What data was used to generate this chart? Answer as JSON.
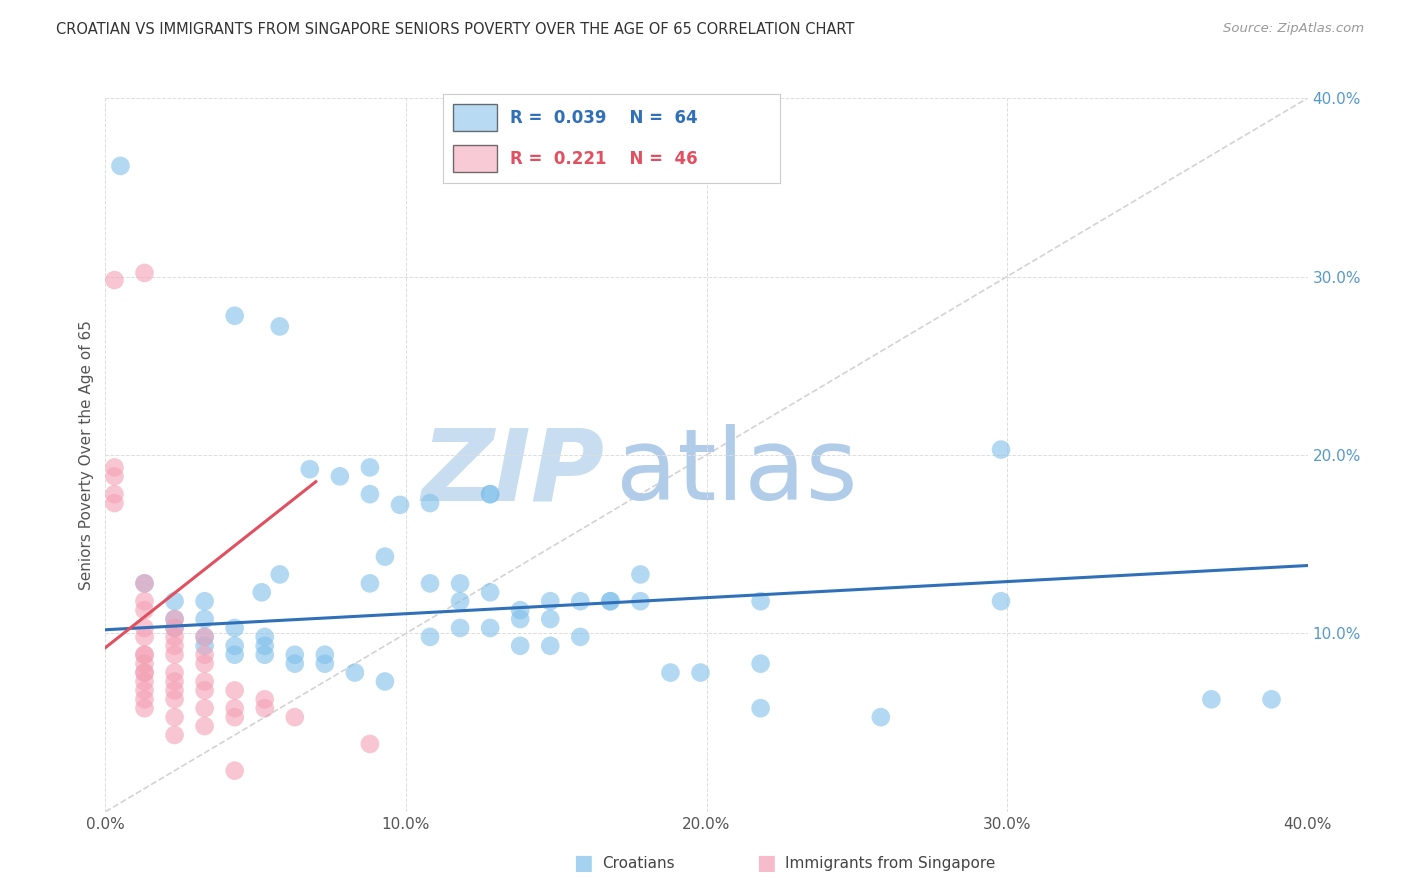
{
  "title": "CROATIAN VS IMMIGRANTS FROM SINGAPORE SENIORS POVERTY OVER THE AGE OF 65 CORRELATION CHART",
  "source": "Source: ZipAtlas.com",
  "ylabel": "Seniors Poverty Over the Age of 65",
  "R1": "0.039",
  "N1": "64",
  "R2": "0.221",
  "N2": "46",
  "blue_color": "#7fbfea",
  "pink_color": "#f4a0b5",
  "blue_line_color": "#3070b8",
  "pink_line_color": "#e05060",
  "diag_line_color": "#c8c8c8",
  "watermark_zip_color": "#c8ddf0",
  "watermark_atlas_color": "#b0cce8",
  "background": "#ffffff",
  "grid_color": "#dddddd",
  "title_color": "#333333",
  "right_tick_color": "#5599cc",
  "xlim": [
    0.0,
    0.4
  ],
  "ylim": [
    0.0,
    0.4
  ],
  "blue_trend_x": [
    0.0,
    0.4
  ],
  "blue_trend_y": [
    0.102,
    0.138
  ],
  "pink_trend_x": [
    0.0,
    0.07
  ],
  "pink_trend_y": [
    0.092,
    0.185
  ],
  "scatter_blue": [
    [
      0.005,
      0.362
    ],
    [
      0.043,
      0.278
    ],
    [
      0.058,
      0.272
    ],
    [
      0.058,
      0.133
    ],
    [
      0.093,
      0.143
    ],
    [
      0.052,
      0.123
    ],
    [
      0.068,
      0.192
    ],
    [
      0.078,
      0.188
    ],
    [
      0.088,
      0.193
    ],
    [
      0.088,
      0.178
    ],
    [
      0.088,
      0.128
    ],
    [
      0.098,
      0.172
    ],
    [
      0.108,
      0.173
    ],
    [
      0.108,
      0.128
    ],
    [
      0.108,
      0.098
    ],
    [
      0.118,
      0.128
    ],
    [
      0.118,
      0.118
    ],
    [
      0.118,
      0.103
    ],
    [
      0.128,
      0.178
    ],
    [
      0.128,
      0.178
    ],
    [
      0.128,
      0.123
    ],
    [
      0.128,
      0.103
    ],
    [
      0.138,
      0.113
    ],
    [
      0.138,
      0.108
    ],
    [
      0.138,
      0.093
    ],
    [
      0.148,
      0.118
    ],
    [
      0.148,
      0.108
    ],
    [
      0.148,
      0.093
    ],
    [
      0.158,
      0.118
    ],
    [
      0.158,
      0.098
    ],
    [
      0.013,
      0.128
    ],
    [
      0.023,
      0.118
    ],
    [
      0.023,
      0.108
    ],
    [
      0.023,
      0.103
    ],
    [
      0.033,
      0.118
    ],
    [
      0.033,
      0.108
    ],
    [
      0.033,
      0.098
    ],
    [
      0.033,
      0.093
    ],
    [
      0.043,
      0.103
    ],
    [
      0.043,
      0.093
    ],
    [
      0.043,
      0.088
    ],
    [
      0.053,
      0.098
    ],
    [
      0.053,
      0.093
    ],
    [
      0.053,
      0.088
    ],
    [
      0.063,
      0.088
    ],
    [
      0.063,
      0.083
    ],
    [
      0.073,
      0.088
    ],
    [
      0.073,
      0.083
    ],
    [
      0.083,
      0.078
    ],
    [
      0.093,
      0.073
    ],
    [
      0.168,
      0.118
    ],
    [
      0.168,
      0.118
    ],
    [
      0.178,
      0.133
    ],
    [
      0.178,
      0.118
    ],
    [
      0.188,
      0.078
    ],
    [
      0.198,
      0.078
    ],
    [
      0.218,
      0.118
    ],
    [
      0.218,
      0.083
    ],
    [
      0.218,
      0.058
    ],
    [
      0.298,
      0.118
    ],
    [
      0.298,
      0.203
    ],
    [
      0.258,
      0.053
    ],
    [
      0.368,
      0.063
    ],
    [
      0.388,
      0.063
    ]
  ],
  "scatter_pink": [
    [
      0.003,
      0.298
    ],
    [
      0.003,
      0.193
    ],
    [
      0.003,
      0.188
    ],
    [
      0.003,
      0.178
    ],
    [
      0.003,
      0.173
    ],
    [
      0.013,
      0.302
    ],
    [
      0.013,
      0.128
    ],
    [
      0.013,
      0.118
    ],
    [
      0.013,
      0.113
    ],
    [
      0.013,
      0.103
    ],
    [
      0.013,
      0.098
    ],
    [
      0.013,
      0.088
    ],
    [
      0.013,
      0.088
    ],
    [
      0.013,
      0.083
    ],
    [
      0.013,
      0.078
    ],
    [
      0.013,
      0.078
    ],
    [
      0.013,
      0.073
    ],
    [
      0.013,
      0.068
    ],
    [
      0.013,
      0.063
    ],
    [
      0.013,
      0.058
    ],
    [
      0.023,
      0.108
    ],
    [
      0.023,
      0.103
    ],
    [
      0.023,
      0.098
    ],
    [
      0.023,
      0.093
    ],
    [
      0.023,
      0.088
    ],
    [
      0.023,
      0.078
    ],
    [
      0.023,
      0.073
    ],
    [
      0.023,
      0.068
    ],
    [
      0.023,
      0.063
    ],
    [
      0.023,
      0.053
    ],
    [
      0.023,
      0.043
    ],
    [
      0.033,
      0.098
    ],
    [
      0.033,
      0.088
    ],
    [
      0.033,
      0.083
    ],
    [
      0.033,
      0.073
    ],
    [
      0.033,
      0.068
    ],
    [
      0.033,
      0.058
    ],
    [
      0.033,
      0.048
    ],
    [
      0.043,
      0.068
    ],
    [
      0.043,
      0.058
    ],
    [
      0.043,
      0.053
    ],
    [
      0.043,
      0.023
    ],
    [
      0.053,
      0.063
    ],
    [
      0.053,
      0.058
    ],
    [
      0.063,
      0.053
    ],
    [
      0.088,
      0.038
    ]
  ]
}
